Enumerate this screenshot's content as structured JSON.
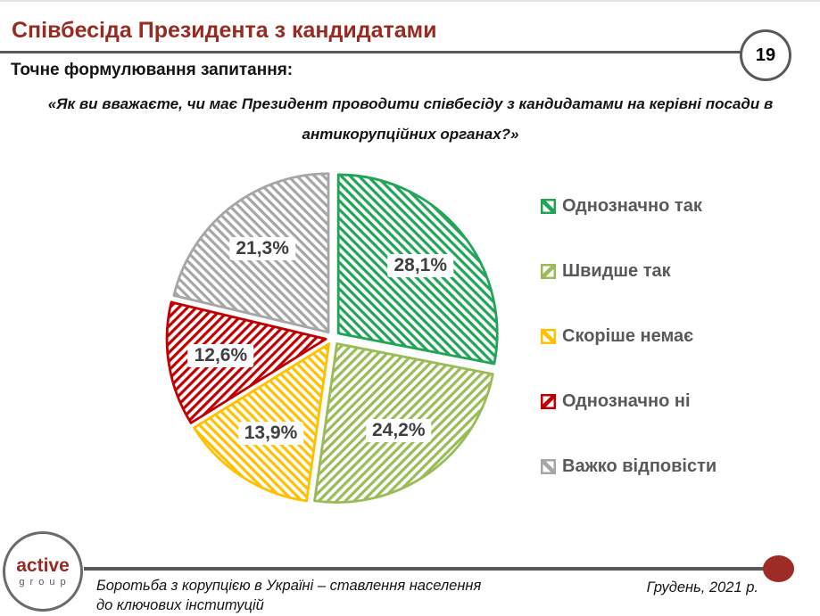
{
  "header": {
    "title": "Співбесіда Президента з кандидатами",
    "page_number": "19"
  },
  "question": {
    "prompt": "Точне формулювання запитання:",
    "text": "«Як ви вважаєте, чи має Президент проводити співбесіду з кандидатами на керівні посади в антикорупційних органах?»"
  },
  "chart_data": {
    "type": "pie",
    "title": "",
    "start_angle_deg": 0,
    "clockwise": true,
    "legend_position": "right",
    "pattern_fill": "diagonal-hatch",
    "slices": [
      {
        "label": "Однозначно так",
        "value": 28.1,
        "display": "28,1%",
        "color": "#21a457",
        "hatch": "down"
      },
      {
        "label": "Швидше так",
        "value": 24.2,
        "display": "24,2%",
        "color": "#9bbb59",
        "hatch": "up"
      },
      {
        "label": "Скоріше немає",
        "value": 13.9,
        "display": "13,9%",
        "color": "#ffc000",
        "hatch": "down"
      },
      {
        "label": "Однозначно ні",
        "value": 12.6,
        "display": "12,6%",
        "color": "#c00000",
        "hatch": "up"
      },
      {
        "label": "Важко відповісти",
        "value": 21.3,
        "display": "21,3%",
        "color": "#a6a6a6",
        "hatch": "down"
      }
    ]
  },
  "footer": {
    "logo_line1": "active",
    "logo_line2": "group",
    "source": "Боротьба з корупцією в Україні – ставлення населення до ключових інституцій",
    "date": "Грудень, 2021 р."
  }
}
